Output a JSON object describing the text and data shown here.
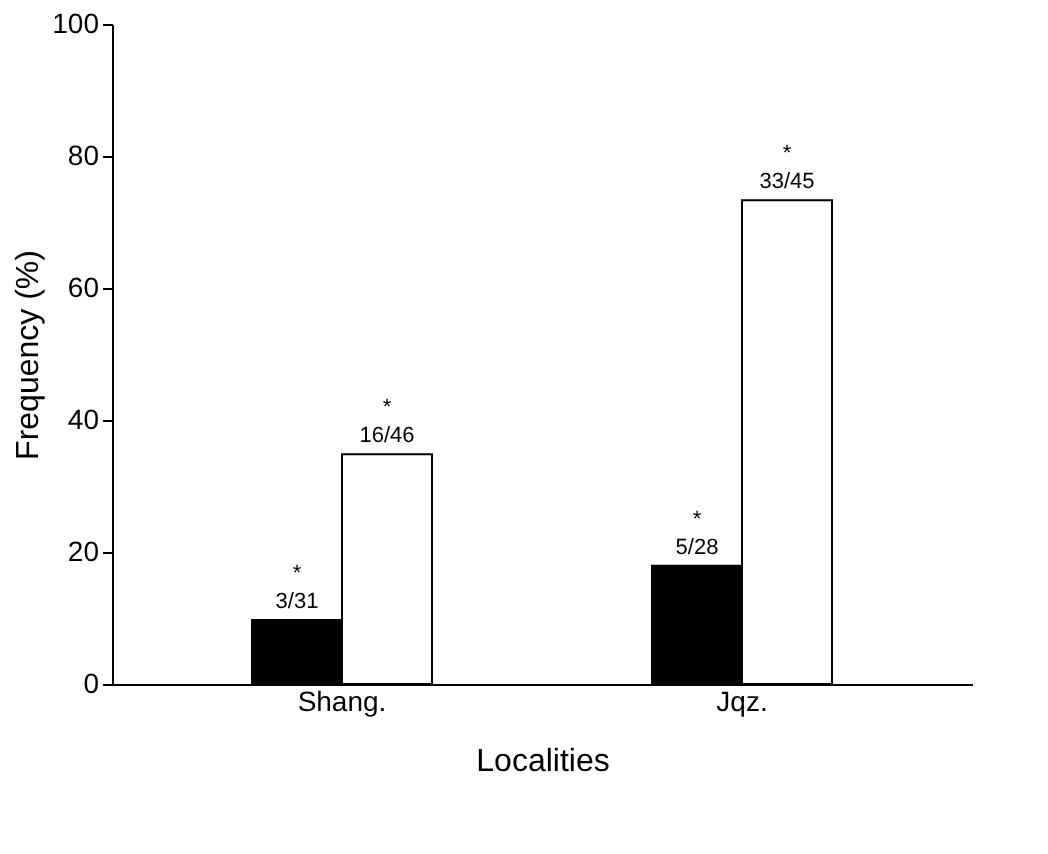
{
  "chart_data": {
    "type": "bar",
    "xlabel": "Localities",
    "ylabel": "Frequency (%)",
    "categories": [
      "Shang.",
      "Jqz."
    ],
    "series": [
      {
        "color": "#000000",
        "values": [
          9.7,
          17.9
        ],
        "value_labels": [
          "*\n3/31",
          "*\n5/28"
        ]
      },
      {
        "color": "#ffffff",
        "values": [
          34.8,
          73.3
        ],
        "value_labels": [
          "*\n16/46",
          "*\n33/45"
        ]
      }
    ],
    "ylim": [
      0,
      100
    ],
    "yticks": [
      0,
      20,
      40,
      60,
      80,
      100
    ],
    "grid": false,
    "legend": false
  }
}
